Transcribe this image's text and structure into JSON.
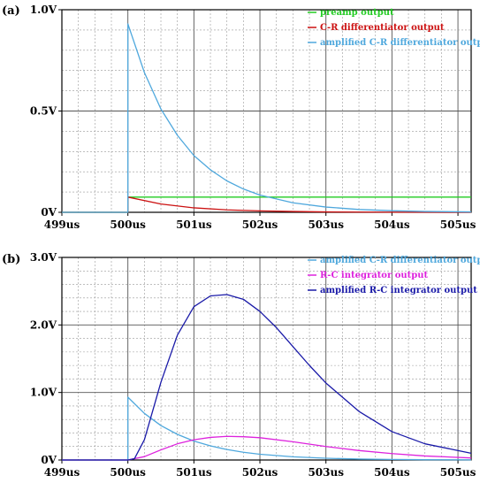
{
  "chart_data": [
    {
      "panel_label": "(a)",
      "type": "line",
      "xlim": [
        499,
        505.2
      ],
      "ylim": [
        0,
        1.0
      ],
      "xticks": [
        499,
        500,
        501,
        502,
        503,
        504,
        505
      ],
      "xtick_labels": [
        "499us",
        "500us",
        "501us",
        "502us",
        "503us",
        "504us",
        "505us"
      ],
      "yticks": [
        0,
        0.5,
        1.0
      ],
      "ytick_labels": [
        "0V",
        "0.5V",
        "1.0V"
      ],
      "grid": true,
      "legend_placement": "top-right",
      "series": [
        {
          "name": "preamp output",
          "color": "#22cc22",
          "x": [
            499,
            500,
            500,
            505.2
          ],
          "y": [
            0,
            0,
            0.075,
            0.075
          ]
        },
        {
          "name": "C-R differentiator output",
          "color": "#cc1111",
          "x": [
            499,
            500,
            500,
            500.5,
            501,
            501.5,
            502,
            502.5,
            503,
            503.5,
            504,
            505.2
          ],
          "y": [
            0,
            0,
            0.075,
            0.041,
            0.022,
            0.012,
            0.007,
            0.004,
            0.002,
            0.001,
            0.0006,
            0.0001
          ]
        },
        {
          "name": "amplified C-R differentiator output",
          "color": "#4fa8dd",
          "x": [
            499,
            500,
            500,
            500.25,
            500.5,
            500.75,
            501,
            501.25,
            501.5,
            501.75,
            502,
            502.5,
            503,
            503.5,
            504,
            504.5,
            505.2
          ],
          "y": [
            0,
            0,
            0.93,
            0.69,
            0.51,
            0.38,
            0.28,
            0.21,
            0.155,
            0.115,
            0.085,
            0.047,
            0.026,
            0.014,
            0.008,
            0.004,
            0.002
          ]
        }
      ]
    },
    {
      "panel_label": "(b)",
      "type": "line",
      "xlim": [
        499,
        505.2
      ],
      "ylim": [
        0,
        3.0
      ],
      "xticks": [
        499,
        500,
        501,
        502,
        503,
        504,
        505
      ],
      "xtick_labels": [
        "499us",
        "500us",
        "501us",
        "502us",
        "503us",
        "504us",
        "505us"
      ],
      "yticks": [
        0,
        1.0,
        2.0,
        3.0
      ],
      "ytick_labels": [
        "0V",
        "1.0V",
        "2.0V",
        "3.0V"
      ],
      "grid": true,
      "legend_placement": "top-right",
      "series": [
        {
          "name": "amplified C-R differentiator output",
          "color": "#4fa8dd",
          "x": [
            499,
            500,
            500,
            500.25,
            500.5,
            500.75,
            501,
            501.25,
            501.5,
            501.75,
            502,
            502.5,
            503,
            503.5,
            504,
            504.5,
            505.2
          ],
          "y": [
            0,
            0,
            0.93,
            0.69,
            0.51,
            0.38,
            0.28,
            0.21,
            0.155,
            0.115,
            0.085,
            0.047,
            0.026,
            0.014,
            0.008,
            0.004,
            0.002
          ]
        },
        {
          "name": "R-C integrator output",
          "color": "#dd22dd",
          "x": [
            499,
            500,
            500.25,
            500.5,
            500.75,
            501,
            501.25,
            501.5,
            501.75,
            502,
            502.5,
            503,
            503.5,
            504,
            504.5,
            505.2
          ],
          "y": [
            0,
            0,
            0.05,
            0.15,
            0.24,
            0.3,
            0.335,
            0.35,
            0.345,
            0.33,
            0.27,
            0.2,
            0.14,
            0.095,
            0.06,
            0.03
          ]
        },
        {
          "name": "amplified R-C integrator output",
          "color": "#1a1aa8",
          "x": [
            499,
            500,
            500.1,
            500.25,
            500.5,
            500.75,
            501,
            501.25,
            501.5,
            501.75,
            502,
            502.25,
            502.5,
            502.75,
            503,
            503.5,
            504,
            504.5,
            505.2
          ],
          "y": [
            0,
            0,
            0.02,
            0.3,
            1.15,
            1.85,
            2.27,
            2.43,
            2.45,
            2.38,
            2.2,
            1.96,
            1.68,
            1.4,
            1.14,
            0.72,
            0.42,
            0.24,
            0.1
          ]
        }
      ]
    }
  ]
}
